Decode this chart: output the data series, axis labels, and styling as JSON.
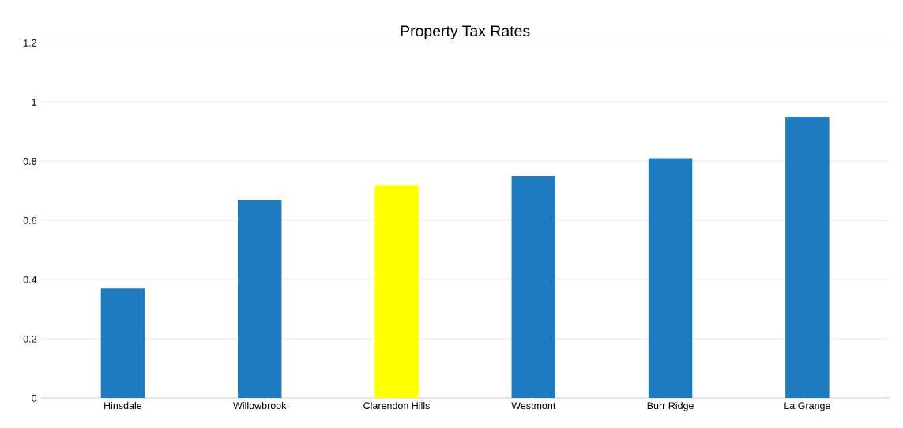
{
  "chart_data": {
    "type": "bar",
    "title": "Property Tax Rates",
    "categories": [
      "Hinsdale",
      "Willowbrook",
      "Clarendon Hills",
      "Westmont",
      "Burr Ridge",
      "La Grange"
    ],
    "values": [
      0.37,
      0.67,
      0.72,
      0.75,
      0.81,
      0.95
    ],
    "colors": [
      "#1f7bc0",
      "#1f7bc0",
      "#ffff00",
      "#1f7bc0",
      "#1f7bc0",
      "#1f7bc0"
    ],
    "ylim": [
      0,
      1.2
    ],
    "yticks": [
      0,
      0.2,
      0.4,
      0.6,
      0.8,
      1,
      1.2
    ],
    "grid": "y"
  }
}
